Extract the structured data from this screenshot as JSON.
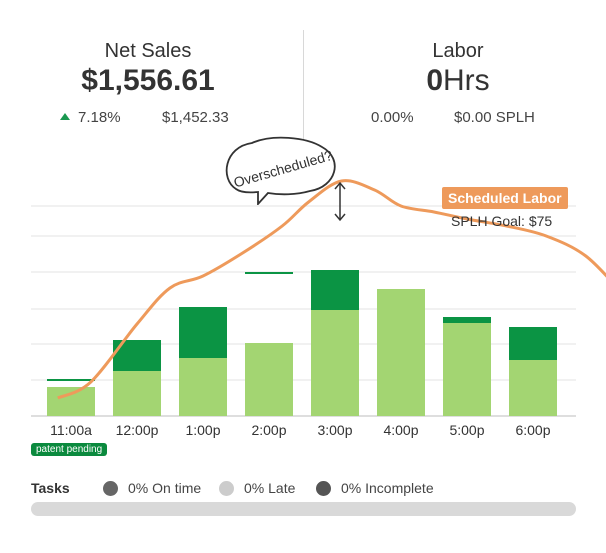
{
  "net_sales": {
    "title": "Net Sales",
    "value": "$1,556.61",
    "change_pct": "7.18%",
    "comparison_value": "$1,452.33"
  },
  "labor": {
    "title": "Labor",
    "value_number": "0",
    "value_unit": "Hrs",
    "pct": "0.00%",
    "splh": "$0.00 SPLH"
  },
  "callouts": {
    "overscheduled": "Overscheduled?",
    "scheduled_labor": "Scheduled Labor",
    "splh_goal": "SPLH Goal: $75"
  },
  "patent": "patent pending",
  "tasks": {
    "label": "Tasks",
    "on_time": "0% On time",
    "late": "0% Late",
    "incomplete": "0% Incomplete",
    "progress": 0
  },
  "colors": {
    "light_green": "#a3d572",
    "dark_green": "#0b9444",
    "labor_line": "#ee9a5b",
    "trend_up": "#1a9850",
    "on_time_dot": "#666666",
    "late_dot": "#cccccc",
    "incomplete_dot": "#555555"
  },
  "chart_data": {
    "type": "bar",
    "categories": [
      "11:00a",
      "12:00p",
      "1:00p",
      "2:00p",
      "3:00p",
      "4:00p",
      "5:00p",
      "6:00p"
    ],
    "series": [
      {
        "values": [
          29,
          45,
          58,
          73,
          106,
          127,
          93,
          56
        ]
      },
      {
        "values": [
          0,
          31,
          51,
          0,
          40,
          0,
          6,
          33
        ]
      }
    ],
    "markers": [
      {
        "category": "11:00a",
        "value": 36
      },
      {
        "category": "2:00p",
        "value": 143
      }
    ],
    "labor_line": {
      "x": [
        -0.2,
        0.3,
        1.0,
        1.5,
        2.0,
        2.6,
        3.2,
        3.6,
        4.1,
        4.6,
        5.0,
        5.5,
        6.0,
        6.6,
        7.2,
        7.8,
        8.35
      ],
      "y": [
        18,
        34,
        92,
        128,
        140,
        163,
        190,
        214,
        235,
        226,
        210,
        204,
        197,
        190,
        180,
        160,
        123
      ]
    },
    "ylim": [
      0,
      250
    ],
    "grid": true,
    "gridlines": [
      0,
      36,
      72,
      107,
      144,
      180,
      210
    ]
  }
}
